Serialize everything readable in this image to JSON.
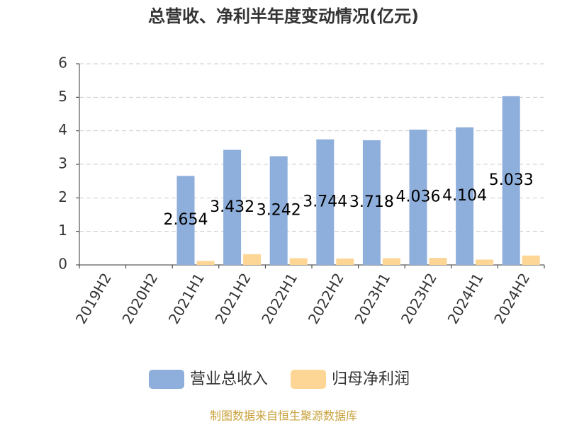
{
  "chart_data": {
    "type": "bar",
    "title": "总营收、净利半年度变动情况(亿元)",
    "categories": [
      "2019H2",
      "2020H2",
      "2021H1",
      "2021H2",
      "2022H1",
      "2022H2",
      "2023H1",
      "2023H2",
      "2024H1",
      "2024H2"
    ],
    "series": [
      {
        "name": "营业总收入",
        "color": "#8eaedb",
        "values": [
          null,
          null,
          2.654,
          3.432,
          3.242,
          3.744,
          3.718,
          4.036,
          4.104,
          5.033
        ]
      },
      {
        "name": "归母净利润",
        "color": "#fdd696",
        "values": [
          null,
          null,
          0.12,
          0.32,
          0.2,
          0.19,
          0.2,
          0.21,
          0.16,
          0.28
        ]
      }
    ],
    "ylim": [
      0,
      6
    ],
    "yticks": [
      0,
      1,
      2,
      3,
      4,
      5,
      6
    ],
    "grid": true,
    "source": "制图数据来自恒生聚源数据库"
  }
}
